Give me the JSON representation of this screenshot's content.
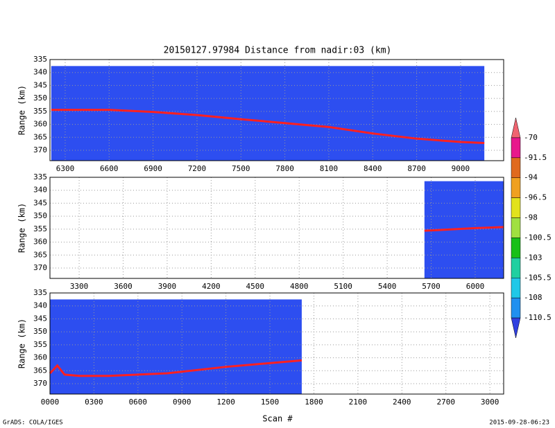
{
  "title": "20150127.97984    Distance from nadir:03 (km)",
  "xlabel": "Scan #",
  "footer_left": "GrADS: COLA/IGES",
  "footer_right": "2015-09-28-06:23",
  "colorbar": {
    "labels": [
      -70,
      -91.5,
      -94,
      -96.5,
      -98,
      -100.5,
      -103,
      -105.5,
      -108,
      -110.5
    ],
    "colors": [
      "#f06470",
      "#e8188c",
      "#e06a1e",
      "#f0a020",
      "#e2e21c",
      "#a0e040",
      "#18c018",
      "#20d0a0",
      "#20c8e8",
      "#2090f0",
      "#3040e0"
    ]
  },
  "chart_data": [
    {
      "type": "line",
      "ylabel": "Range (km)",
      "xlim": [
        6196,
        9294
      ],
      "ylim": [
        374,
        335
      ],
      "xticks": [
        6300,
        6600,
        6900,
        7200,
        7500,
        7800,
        8100,
        8400,
        8700,
        9000
      ],
      "yticks": [
        335,
        340,
        345,
        350,
        355,
        360,
        365,
        370
      ],
      "grid": true,
      "data_extent": {
        "x": [
          6205,
          9162
        ],
        "y": [
          374,
          337.5
        ],
        "color": "#2d4ef0"
      },
      "series": [
        {
          "color": "#ff2020",
          "x": [
            6205,
            6600,
            6900,
            7200,
            7500,
            7800,
            8100,
            8400,
            8700,
            9000,
            9162
          ],
          "values": [
            354.4,
            354.4,
            355.2,
            356.4,
            358,
            359.5,
            361,
            363.5,
            365.5,
            366.8,
            367.2
          ]
        }
      ]
    },
    {
      "type": "line",
      "ylabel": "Range (km)",
      "xlim": [
        3101,
        6194
      ],
      "ylim": [
        374,
        335
      ],
      "xticks": [
        3300,
        3600,
        3900,
        4200,
        4500,
        4800,
        5100,
        5400,
        5700,
        6000
      ],
      "yticks": [
        335,
        340,
        345,
        350,
        355,
        360,
        365,
        370
      ],
      "grid": true,
      "data_extent": {
        "x": [
          5654,
          6194
        ],
        "y": [
          374,
          336.5
        ],
        "color": "#2d4ef0"
      },
      "series": [
        {
          "color": "#ff2020",
          "x": [
            5654,
            5800,
            6000,
            6194
          ],
          "values": [
            355.6,
            355.2,
            354.6,
            354.2
          ]
        }
      ]
    },
    {
      "type": "line",
      "ylabel": "Range (km)",
      "xlim": [
        0,
        3094
      ],
      "ylim": [
        374,
        335
      ],
      "xticks": [
        {
          "value": 0,
          "label": "0000"
        },
        {
          "value": 300,
          "label": "0300"
        },
        {
          "value": 600,
          "label": "0600"
        },
        {
          "value": 900,
          "label": "0900"
        },
        1200,
        1500,
        1800,
        2100,
        2400,
        2700,
        3000
      ],
      "yticks": [
        335,
        340,
        345,
        350,
        355,
        360,
        365,
        370
      ],
      "grid": true,
      "data_extent": {
        "x": [
          0,
          1717
        ],
        "y": [
          374,
          337.5
        ],
        "color": "#2d4ef0"
      },
      "series": [
        {
          "color": "#ff2020",
          "x": [
            0,
            50,
            100,
            200,
            400,
            800,
            1200,
            1717
          ],
          "values": [
            366,
            363,
            366.5,
            367,
            367,
            366,
            363.5,
            361
          ]
        }
      ]
    }
  ]
}
